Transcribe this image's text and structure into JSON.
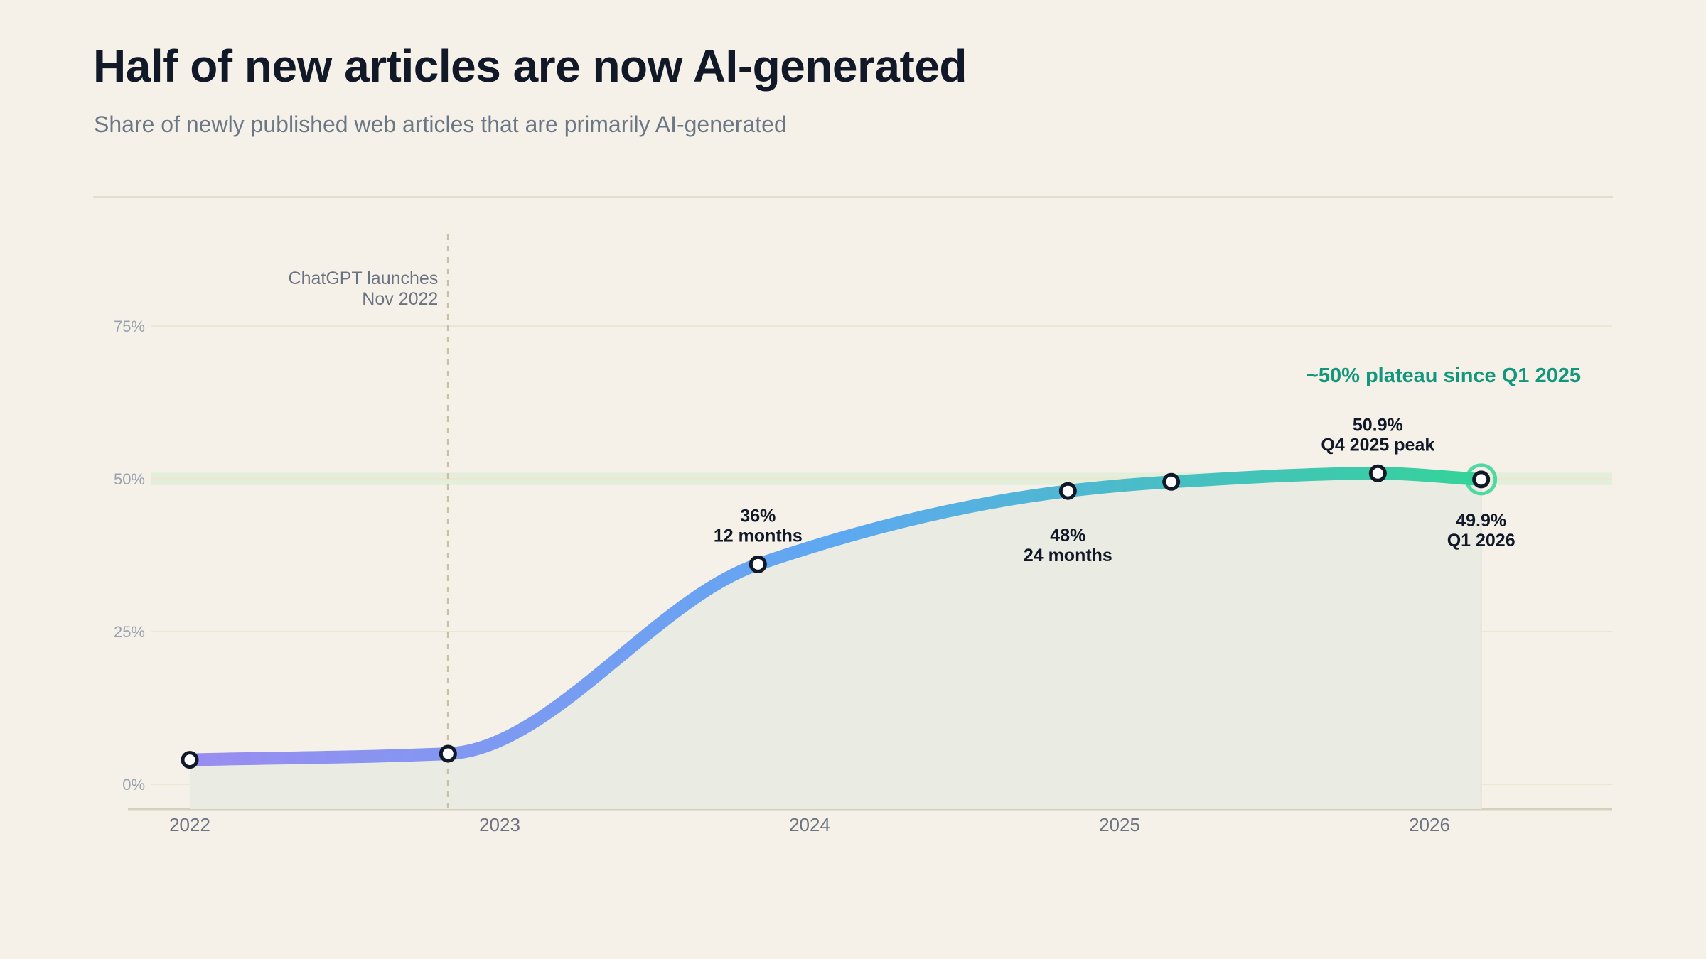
{
  "header": {
    "title": "Half of new articles are now AI-generated",
    "subtitle": "Share of newly published web articles that are primarily AI-generated"
  },
  "chart_data": {
    "type": "line",
    "title": "Half of new articles are now AI-generated",
    "subtitle": "Share of newly published web articles that are primarily AI-generated",
    "xlabel": "",
    "ylabel": "",
    "x_ticks": [
      "2022",
      "2023",
      "2024",
      "2025",
      "2026"
    ],
    "y_ticks": [
      "0%",
      "25%",
      "50%",
      "75%"
    ],
    "ylim": [
      0,
      75
    ],
    "grid": true,
    "series": [
      {
        "points": [
          {
            "x": "2022-01",
            "y": 4
          },
          {
            "x": "2022-11",
            "y": 5
          },
          {
            "x": "2023-11",
            "y": 36
          },
          {
            "x": "2024-11",
            "y": 48
          },
          {
            "x": "2025-03",
            "y": 49.5
          },
          {
            "x": "2025-11",
            "y": 50.9
          },
          {
            "x": "2026-03",
            "y": 49.9
          }
        ]
      }
    ],
    "annotations": {
      "event_line": {
        "x": "2022-11",
        "label_line1": "ChatGPT launches",
        "label_line2": "Nov 2022"
      },
      "point_12m": {
        "value": "36%",
        "label": "12 months"
      },
      "point_24m": {
        "value": "48%",
        "label": "24 months"
      },
      "peak": {
        "value": "50.9%",
        "label": "Q4 2025 peak"
      },
      "latest": {
        "value": "49.9%",
        "label": "Q1 2026"
      },
      "plateau": {
        "text": "~50% plateau since Q1 2025",
        "band": [
          49,
          51
        ]
      }
    },
    "colors": {
      "line_start": "#9a8cf0",
      "line_mid": "#5ea8f2",
      "line_end": "#34d399",
      "plateau_text": "#13977c",
      "plateau_band": "#e3eedb",
      "area_fill": "#e9ebe3"
    }
  }
}
